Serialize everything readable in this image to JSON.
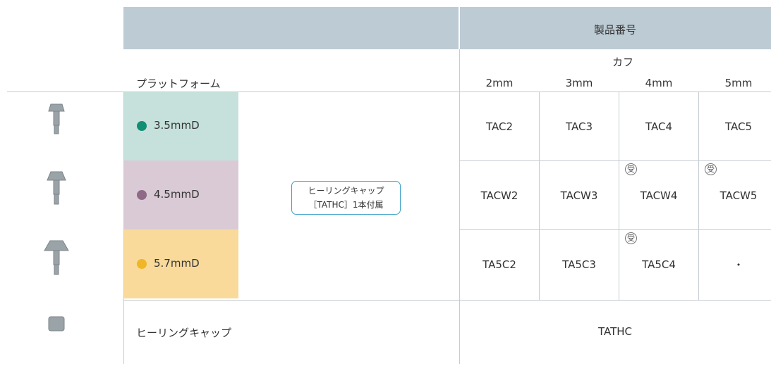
{
  "header": {
    "product_number": "製品番号",
    "cuff": "カフ",
    "platform": "プラットフォーム",
    "cuff_sizes": [
      "2mm",
      "3mm",
      "4mm",
      "5mm"
    ]
  },
  "rows": [
    {
      "platform": "3.5mmD",
      "dot": "#128f73",
      "background": "#c6e1db",
      "cells": [
        {
          "code": "TAC2"
        },
        {
          "code": "TAC3"
        },
        {
          "code": "TAC4"
        },
        {
          "code": "TAC5"
        }
      ]
    },
    {
      "platform": "4.5mmD",
      "dot": "#8e6a86",
      "background": "#d9cad5",
      "cells": [
        {
          "code": "TACW2"
        },
        {
          "code": "TACW3"
        },
        {
          "code": "TACW4",
          "mark": "受"
        },
        {
          "code": "TACW5",
          "mark": "受"
        }
      ]
    },
    {
      "platform": "5.7mmD",
      "dot": "#f0b628",
      "background": "#f9da9b",
      "cells": [
        {
          "code": "TA5C2"
        },
        {
          "code": "TA5C3"
        },
        {
          "code": "TA5C4",
          "mark": "受"
        },
        {
          "code": "・"
        }
      ]
    }
  ],
  "note_lines": [
    "ヒーリングキャップ",
    "［TATHC］1本付属"
  ],
  "healing_cap": {
    "label": "ヒーリングキャップ",
    "code": "TATHC"
  }
}
